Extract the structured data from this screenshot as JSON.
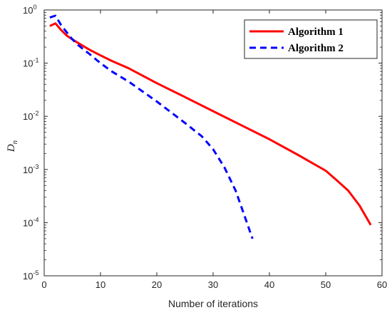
{
  "chart_data": {
    "type": "line",
    "xlabel": "Number of iterations",
    "ylabel": "D",
    "ylabel_subscript": "n",
    "xlim": [
      0,
      60
    ],
    "ylim": [
      1e-05,
      1
    ],
    "yscale": "log",
    "grid": false,
    "legend_placement": "top-right",
    "x_ticks": [
      "0",
      "10",
      "20",
      "30",
      "40",
      "50",
      "60"
    ],
    "y_ticks": [
      {
        "base": "10",
        "exp": "0"
      },
      {
        "base": "10",
        "exp": "-1"
      },
      {
        "base": "10",
        "exp": "-2"
      },
      {
        "base": "10",
        "exp": "-3"
      },
      {
        "base": "10",
        "exp": "-4"
      },
      {
        "base": "10",
        "exp": "-5"
      }
    ],
    "series": [
      {
        "name": "Algorithm 1",
        "color": "#ff0000",
        "style": "solid",
        "x": [
          1,
          2,
          3,
          4,
          5,
          6,
          8,
          10,
          12,
          15,
          20,
          25,
          30,
          35,
          40,
          45,
          48,
          50,
          52,
          54,
          56,
          58
        ],
        "y": [
          0.5,
          0.56,
          0.42,
          0.33,
          0.28,
          0.24,
          0.18,
          0.14,
          0.11,
          0.08,
          0.042,
          0.023,
          0.0125,
          0.0068,
          0.0037,
          0.0019,
          0.00125,
          0.00095,
          0.00062,
          0.0004,
          0.00021,
          9e-05
        ]
      },
      {
        "name": "Algorithm 2",
        "color": "#0000ff",
        "style": "dashed",
        "x": [
          1,
          2,
          3,
          4,
          5,
          6,
          8,
          10,
          12,
          15,
          20,
          25,
          28,
          30,
          32,
          34,
          35,
          36,
          37
        ],
        "y": [
          0.72,
          0.78,
          0.52,
          0.38,
          0.28,
          0.22,
          0.15,
          0.1,
          0.07,
          0.045,
          0.019,
          0.0075,
          0.0042,
          0.0024,
          0.0011,
          0.0004,
          0.0002,
          0.0001,
          5e-05
        ]
      }
    ]
  }
}
